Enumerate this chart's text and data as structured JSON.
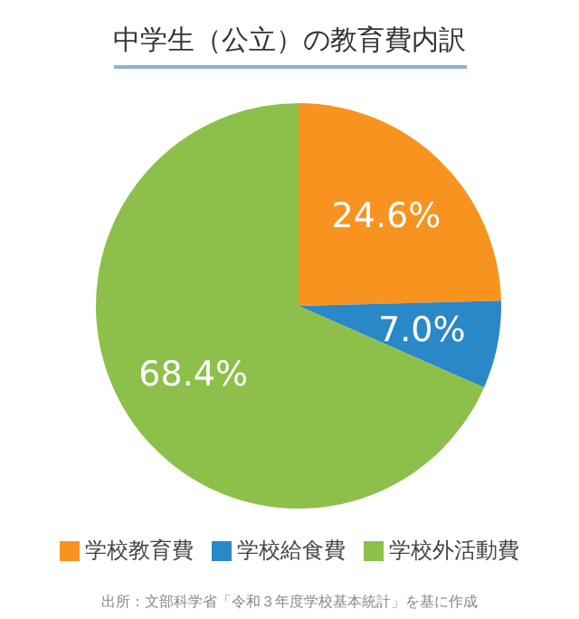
{
  "chart_data": {
    "type": "pie",
    "title": "中学生（公立）の教育費内訳",
    "categories": [
      "学校教育費",
      "学校給食費",
      "学校外活動費"
    ],
    "values": [
      24.6,
      7.0,
      68.4
    ],
    "value_labels": [
      "24.6%",
      "7.0%",
      "68.4%"
    ],
    "colors": [
      "#f7931e",
      "#2a88c8",
      "#8dc04a"
    ],
    "legend": "bottom",
    "annotations": [
      "出所：文部科学省「令和３年度学校基本統計」を基に作成"
    ]
  }
}
